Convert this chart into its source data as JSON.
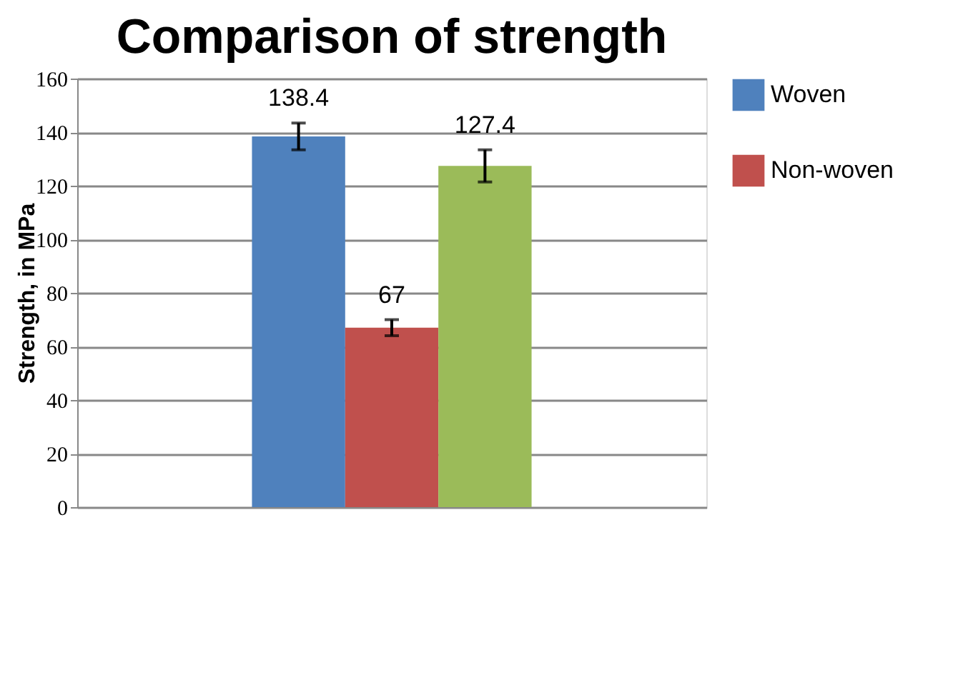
{
  "chart_data": {
    "type": "bar",
    "title": "Comparison of strength",
    "ylabel": "Strength, in MPa",
    "categories": [
      null
    ],
    "series": [
      {
        "name": "Woven",
        "color": "#4f81bd",
        "values": [
          138.4
        ],
        "errors": [
          5
        ]
      },
      {
        "name": "Non-woven",
        "color": "#c0504d",
        "values": [
          67
        ],
        "errors": [
          3
        ]
      },
      {
        "color": "#9bbb59",
        "values": [
          127.4
        ],
        "errors": [
          6
        ]
      }
    ],
    "ylim": [
      0,
      160
    ],
    "yticks": [
      0,
      20,
      40,
      60,
      80,
      100,
      120,
      140,
      160
    ],
    "grid": "y",
    "legend": "right",
    "data_labels": true
  }
}
